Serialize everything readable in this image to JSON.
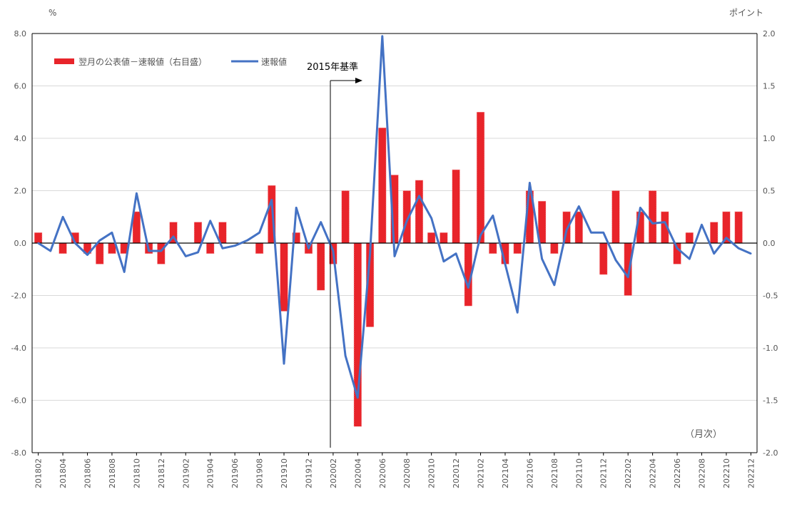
{
  "chart_data": {
    "type": "bar+line",
    "left_axis_unit": "%",
    "right_axis_unit": "ポイント",
    "left_ticks": [
      "8.0",
      "6.0",
      "4.0",
      "2.0",
      "0.0",
      "-2.0",
      "-4.0",
      "-6.0",
      "-8.0"
    ],
    "right_ticks": [
      "2.0",
      "1.5",
      "1.0",
      "0.5",
      "0.0",
      "-0.5",
      "-1.0",
      "-1.5",
      "-2.0"
    ],
    "ylim_left": [
      -8,
      8
    ],
    "ylim_right": [
      -2,
      2
    ],
    "x_unit_label": "（月次）",
    "annotation": "2015年基準",
    "legend": {
      "bar_label": "翌月の公表値－速報値（右目盛）",
      "line_label": "速報値"
    },
    "colors": {
      "bar": "#e8242a",
      "line": "#4472c4"
    },
    "x_tick_labels": [
      "201802",
      "201804",
      "201806",
      "201808",
      "201810",
      "201812",
      "201902",
      "201904",
      "201906",
      "201908",
      "201910",
      "201912",
      "202002",
      "202004",
      "202006",
      "202008",
      "202010",
      "202012",
      "202102",
      "202104",
      "202106",
      "202108",
      "202110",
      "202112",
      "202202",
      "202204",
      "202206",
      "202208",
      "202210",
      "202212"
    ],
    "categories": [
      "201802",
      "201803",
      "201804",
      "201805",
      "201806",
      "201807",
      "201808",
      "201809",
      "201810",
      "201811",
      "201812",
      "201901",
      "201902",
      "201903",
      "201904",
      "201905",
      "201906",
      "201907",
      "201908",
      "201909",
      "201910",
      "201911",
      "201912",
      "202001",
      "202002",
      "202003",
      "202004",
      "202005",
      "202006",
      "202007",
      "202008",
      "202009",
      "202010",
      "202011",
      "202012",
      "202101",
      "202102",
      "202103",
      "202104",
      "202105",
      "202106",
      "202107",
      "202108",
      "202109",
      "202110",
      "202111",
      "202112",
      "202201",
      "202202",
      "202203",
      "202204",
      "202205",
      "202206",
      "202207",
      "202208",
      "202209",
      "202210",
      "202211",
      "202212"
    ],
    "series": [
      {
        "name": "翌月の公表値－速報値（右目盛）",
        "axis": "right",
        "values": [
          0.1,
          0,
          -0.1,
          0.1,
          -0.1,
          -0.2,
          -0.1,
          -0.1,
          0.3,
          -0.1,
          -0.2,
          0.2,
          0,
          0.2,
          -0.1,
          0.2,
          0,
          0,
          -0.1,
          0.55,
          -0.65,
          0.1,
          -0.1,
          -0.45,
          -0.2,
          0.5,
          -1.75,
          -0.8,
          1.1,
          0.65,
          0.5,
          0.6,
          0.1,
          0.1,
          0.7,
          -0.6,
          1.25,
          -0.1,
          -0.2,
          -0.1,
          0.5,
          0.4,
          -0.1,
          0.3,
          0.3,
          0,
          -0.3,
          0.5,
          -0.5,
          0.3,
          0.5,
          0.3,
          -0.2,
          0.1,
          0,
          0.2,
          0.3,
          0.3,
          0
        ]
      },
      {
        "name": "速報値",
        "axis": "left",
        "values": [
          0,
          -0.3,
          1.0,
          0,
          -0.45,
          0.1,
          0.4,
          -1.1,
          1.9,
          -0.3,
          -0.3,
          0.25,
          -0.5,
          -0.35,
          0.85,
          -0.2,
          -0.1,
          0.1,
          0.4,
          1.65,
          -4.6,
          1.35,
          -0.2,
          0.8,
          -0.3,
          -4.3,
          -5.9,
          -0.4,
          7.9,
          -0.5,
          0.85,
          1.8,
          0.95,
          -0.7,
          -0.4,
          -1.7,
          0.3,
          1.05,
          -0.8,
          -2.65,
          2.3,
          -0.6,
          -1.6,
          0.5,
          1.4,
          0.4,
          0.4,
          -0.65,
          -1.3,
          1.35,
          0.75,
          0.8,
          -0.2,
          -0.6,
          0.7,
          -0.4,
          0.2,
          -0.2,
          -0.4
        ]
      }
    ]
  }
}
